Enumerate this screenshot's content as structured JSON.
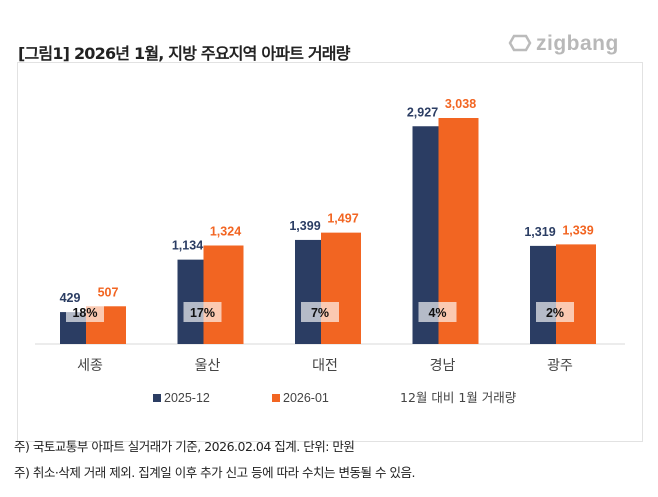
{
  "header": {
    "title": "[그림1] 2026년 1월, 지방 주요지역 아파트 거래량",
    "logo_text": "zigbang"
  },
  "chart_data": {
    "type": "bar",
    "categories": [
      "세종",
      "울산",
      "대전",
      "경남",
      "광주"
    ],
    "series": [
      {
        "name": "2025-12",
        "color": "#2b3d63",
        "values": [
          429,
          1134,
          1399,
          2927,
          1319
        ]
      },
      {
        "name": "2026-01",
        "color": "#f26522",
        "values": [
          507,
          1324,
          1497,
          3038,
          1339
        ]
      }
    ],
    "change_labels": [
      "18%",
      "17%",
      "7%",
      "4%",
      "2%"
    ],
    "change_legend": "12월 대비 1월 거래량",
    "ylim": [
      0,
      3200
    ],
    "grid": false,
    "legend_placement": "bottom"
  },
  "notes": [
    "주) 국토교통부 아파트 실거래가 기준, 2026.02.04 집계. 단위: 만원",
    "주) 취소·삭제 거래 제외. 집계일 이후 추가 신고 등에 따라 수치는 변동될 수 있음."
  ]
}
